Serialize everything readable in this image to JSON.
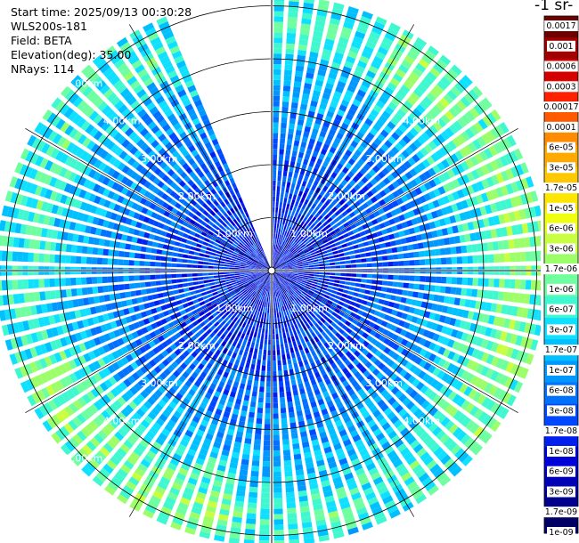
{
  "header": {
    "start_time": "Start time: 2025/09/13 00:30:28",
    "instrument": "WLS200s-181",
    "field": "Field: BETA",
    "elevation": "Elevation(deg): 35.00",
    "nrays": "NRays: 114"
  },
  "colorbar": {
    "title": "-1 sr-",
    "labels": [
      "0.0017",
      "0.001",
      "0.0006",
      "0.0003",
      "0.00017",
      "0.0001",
      "6e-05",
      "3e-05",
      "1.7e-05",
      "1e-05",
      "6e-06",
      "3e-06",
      "1.7e-06",
      "1e-06",
      "6e-07",
      "3e-07",
      "1.7e-07",
      "1e-07",
      "6e-08",
      "3e-08",
      "1.7e-08",
      "1e-08",
      "6e-09",
      "3e-09",
      "1.7e-09",
      "1e-09"
    ],
    "colors": [
      "#6e0000",
      "#a00000",
      "#d40000",
      "#ff2000",
      "#ff5a00",
      "#ff8c00",
      "#ffaa00",
      "#ffc800",
      "#ffe600",
      "#f0ff10",
      "#c8ff40",
      "#9cff6a",
      "#70ffa0",
      "#40f8d0",
      "#10e0ff",
      "#00c0ff",
      "#0098ff",
      "#0070ff",
      "#0048ff",
      "#0020f0",
      "#0000d8",
      "#0000b4",
      "#00008c",
      "#000064"
    ]
  },
  "chart_data": {
    "type": "heatmap",
    "projection": "polar PPI (plan position indicator)",
    "field": "BETA",
    "elevation_deg": 35.0,
    "nrays": 114,
    "range_rings_km": [
      1.0,
      2.0,
      3.0,
      4.0,
      5.0
    ],
    "ring_labels": [
      "1.00km",
      "2.00km",
      "3.00km",
      "4.00km",
      "5.00km"
    ],
    "max_range_km": 5.2,
    "data_gap_azimuth_deg": [
      338,
      360
    ],
    "color_scale": "logarithmic",
    "color_range": [
      1e-09,
      0.0017
    ],
    "radial_profile": [
      {
        "range_km": 0.0,
        "beta": 1e-08
      },
      {
        "range_km": 1.0,
        "beta": 1.7e-08
      },
      {
        "range_km": 2.0,
        "beta": 3e-08
      },
      {
        "range_km": 3.0,
        "beta": 8e-08
      },
      {
        "range_km": 4.0,
        "beta": 2e-07
      },
      {
        "range_km": 4.6,
        "beta": 6e-07
      },
      {
        "range_km": 5.2,
        "beta": 3e-07
      }
    ],
    "enhanced_sectors_deg": [
      [
        30,
        130
      ],
      [
        190,
        250
      ]
    ],
    "grid": true
  }
}
